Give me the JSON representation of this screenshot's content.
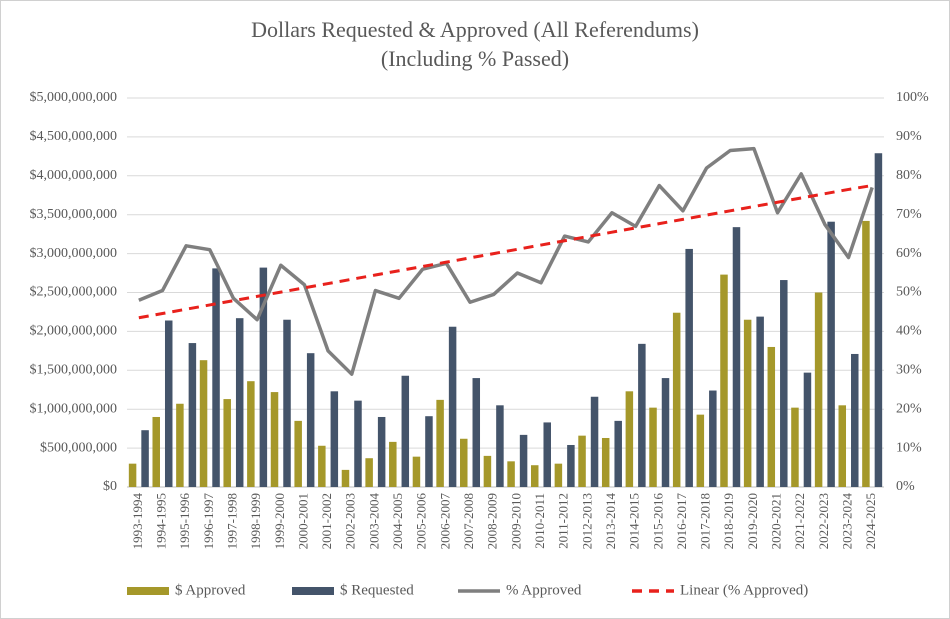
{
  "chart_data": {
    "type": "combo",
    "title": "Dollars Requested & Approved (All Referendums)",
    "subtitle": "(Including % Passed)",
    "categories": [
      "1993-1994",
      "1994-1995",
      "1995-1996",
      "1996-1997",
      "1997-1998",
      "1998-1999",
      "1999-2000",
      "2000-2001",
      "2001-2002",
      "2002-2003",
      "2003-2004",
      "2004-2005",
      "2005-2006",
      "2006-2007",
      "2007-2008",
      "2008-2009",
      "2009-2010",
      "2010-2011",
      "2011-2012",
      "2012-2013",
      "2013-2014",
      "2014-2015",
      "2015-2016",
      "2016-2017",
      "2017-2018",
      "2018-2019",
      "2019-2020",
      "2020-2021",
      "2021-2022",
      "2022-2023",
      "2023-2024",
      "2024-2025"
    ],
    "series": [
      {
        "name": "$ Approved",
        "type": "bar",
        "color": "#a5982a",
        "values": [
          300000000,
          900000000,
          1070000000,
          1630000000,
          1130000000,
          1360000000,
          1220000000,
          850000000,
          530000000,
          220000000,
          370000000,
          580000000,
          390000000,
          1120000000,
          620000000,
          400000000,
          330000000,
          280000000,
          300000000,
          660000000,
          630000000,
          1230000000,
          1020000000,
          2240000000,
          930000000,
          2730000000,
          2150000000,
          1800000000,
          1020000000,
          2500000000,
          1050000000,
          3420000000
        ]
      },
      {
        "name": "$ Requested",
        "type": "bar",
        "color": "#44546a",
        "values": [
          730000000,
          2140000000,
          1850000000,
          2810000000,
          2170000000,
          2820000000,
          2150000000,
          1720000000,
          1230000000,
          1110000000,
          900000000,
          1430000000,
          910000000,
          2060000000,
          1400000000,
          1050000000,
          670000000,
          830000000,
          540000000,
          1160000000,
          850000000,
          1840000000,
          1400000000,
          3060000000,
          1240000000,
          3340000000,
          2190000000,
          2660000000,
          1470000000,
          3410000000,
          1710000000,
          4290000000
        ]
      },
      {
        "name": "% Approved",
        "type": "line",
        "axis": "y2",
        "color": "#7f7f7f",
        "line_style": "solid",
        "values": [
          48,
          50.5,
          62,
          61,
          48.5,
          43,
          57,
          52,
          35,
          29,
          50.5,
          48.5,
          56,
          57.5,
          47.5,
          49.5,
          55,
          52.5,
          64.5,
          63,
          70.5,
          67,
          77.5,
          71,
          82,
          86.5,
          87,
          70.5,
          80.5,
          67.5,
          59,
          77
        ]
      },
      {
        "name": "Linear (% Approved)",
        "type": "line",
        "axis": "y2",
        "color": "#e8211c",
        "line_style": "dashed",
        "values": [
          43.5,
          44.6,
          45.7,
          46.8,
          47.9,
          49,
          50.1,
          51.2,
          52.3,
          53.4,
          54.5,
          55.6,
          56.7,
          57.8,
          58.9,
          60,
          61.1,
          62.2,
          63.3,
          64.4,
          65.5,
          66.6,
          67.7,
          68.8,
          69.9,
          71,
          72.1,
          73.2,
          74.3,
          75.4,
          76.5,
          77.5
        ]
      }
    ],
    "ylim": [
      0,
      5000000000
    ],
    "yticks": [
      {
        "value": 0,
        "label": "$0"
      },
      {
        "value": 500000000,
        "label": "$500,000,000"
      },
      {
        "value": 1000000000,
        "label": "$1,000,000,000"
      },
      {
        "value": 1500000000,
        "label": "$1,500,000,000"
      },
      {
        "value": 2000000000,
        "label": "$2,000,000,000"
      },
      {
        "value": 2500000000,
        "label": "$2,500,000,000"
      },
      {
        "value": 3000000000,
        "label": "$3,000,000,000"
      },
      {
        "value": 3500000000,
        "label": "$3,500,000,000"
      },
      {
        "value": 4000000000,
        "label": "$4,000,000,000"
      },
      {
        "value": 4500000000,
        "label": "$4,500,000,000"
      },
      {
        "value": 5000000000,
        "label": "$5,000,000,000"
      }
    ],
    "y2lim": [
      0,
      100
    ],
    "y2ticks": [
      {
        "value": 0,
        "label": "0%"
      },
      {
        "value": 10,
        "label": "10%"
      },
      {
        "value": 20,
        "label": "20%"
      },
      {
        "value": 30,
        "label": "30%"
      },
      {
        "value": 40,
        "label": "40%"
      },
      {
        "value": 50,
        "label": "50%"
      },
      {
        "value": 60,
        "label": "60%"
      },
      {
        "value": 70,
        "label": "70%"
      },
      {
        "value": 80,
        "label": "80%"
      },
      {
        "value": 90,
        "label": "90%"
      },
      {
        "value": 100,
        "label": "100%"
      }
    ],
    "grid": true,
    "legend": "bottom"
  }
}
